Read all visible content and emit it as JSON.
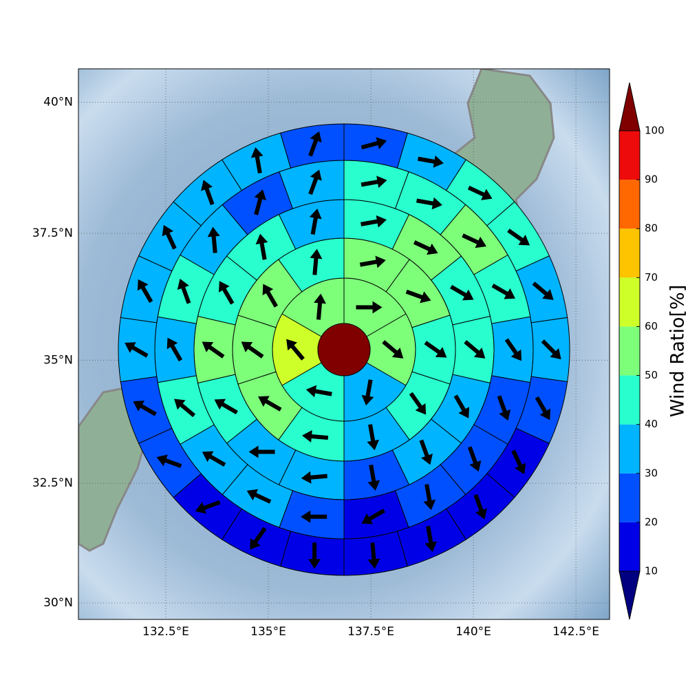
{
  "chart_data": {
    "type": "polar_wind",
    "xlim": [
      130.37,
      143.32
    ],
    "ylim": [
      29.65,
      40.62
    ],
    "xticks": [
      {
        "value": 132.5,
        "label": "132.5°E"
      },
      {
        "value": 135,
        "label": "135°E"
      },
      {
        "value": 137.5,
        "label": "137.5°E"
      },
      {
        "value": 140,
        "label": "140°E"
      },
      {
        "value": 142.5,
        "label": "142.5°E"
      }
    ],
    "yticks": [
      {
        "value": 30,
        "label": "30°N"
      },
      {
        "value": 32.5,
        "label": "32.5°N"
      },
      {
        "value": 35,
        "label": "35°N"
      },
      {
        "value": 37.5,
        "label": "37.5°N"
      },
      {
        "value": 40,
        "label": "40°N"
      }
    ],
    "grid": true,
    "colorbar": {
      "label": "Wind Ratio[%]",
      "ticks": [
        10,
        20,
        30,
        40,
        50,
        60,
        70,
        80,
        90,
        100
      ],
      "colors": [
        "#0000e6",
        "#0050ff",
        "#00b4ff",
        "#29ffce",
        "#7dff7a",
        "#ceff29",
        "#ffc400",
        "#ff6800",
        "#ee0b0b"
      ],
      "under_color": "#000080",
      "over_color": "#800000"
    },
    "center": {
      "value": 105
    },
    "rings": [
      {
        "values": [
          55,
          55,
          35,
          45,
          65,
          55
        ],
        "directions": [
          90,
          130,
          190,
          280,
          320,
          5
        ]
      },
      {
        "values": [
          55,
          55,
          45,
          45,
          35,
          45,
          55,
          55,
          55,
          45
        ],
        "directions": [
          80,
          110,
          125,
          145,
          170,
          275,
          300,
          305,
          330,
          5
        ]
      },
      {
        "values": [
          45,
          55,
          45,
          45,
          35,
          35,
          25,
          35,
          35,
          45,
          55,
          45,
          45,
          35
        ],
        "directions": [
          80,
          115,
          120,
          130,
          150,
          160,
          170,
          265,
          270,
          300,
          305,
          330,
          350,
          10
        ]
      },
      {
        "values": [
          45,
          45,
          55,
          45,
          35,
          25,
          25,
          25,
          15,
          25,
          35,
          35,
          45,
          35,
          45,
          35,
          25,
          35
        ],
        "directions": [
          80,
          100,
          115,
          120,
          145,
          160,
          160,
          170,
          240,
          270,
          295,
          300,
          310,
          330,
          340,
          355,
          15,
          20
        ]
      },
      {
        "values": [
          25,
          35,
          45,
          45,
          35,
          35,
          25,
          15,
          15,
          15,
          15,
          15,
          15,
          15,
          25,
          25,
          35,
          35,
          35,
          35,
          35,
          25
        ],
        "directions": [
          75,
          100,
          115,
          125,
          130,
          135,
          150,
          155,
          160,
          170,
          175,
          180,
          215,
          250,
          290,
          300,
          300,
          330,
          335,
          340,
          350,
          20
        ]
      }
    ]
  }
}
